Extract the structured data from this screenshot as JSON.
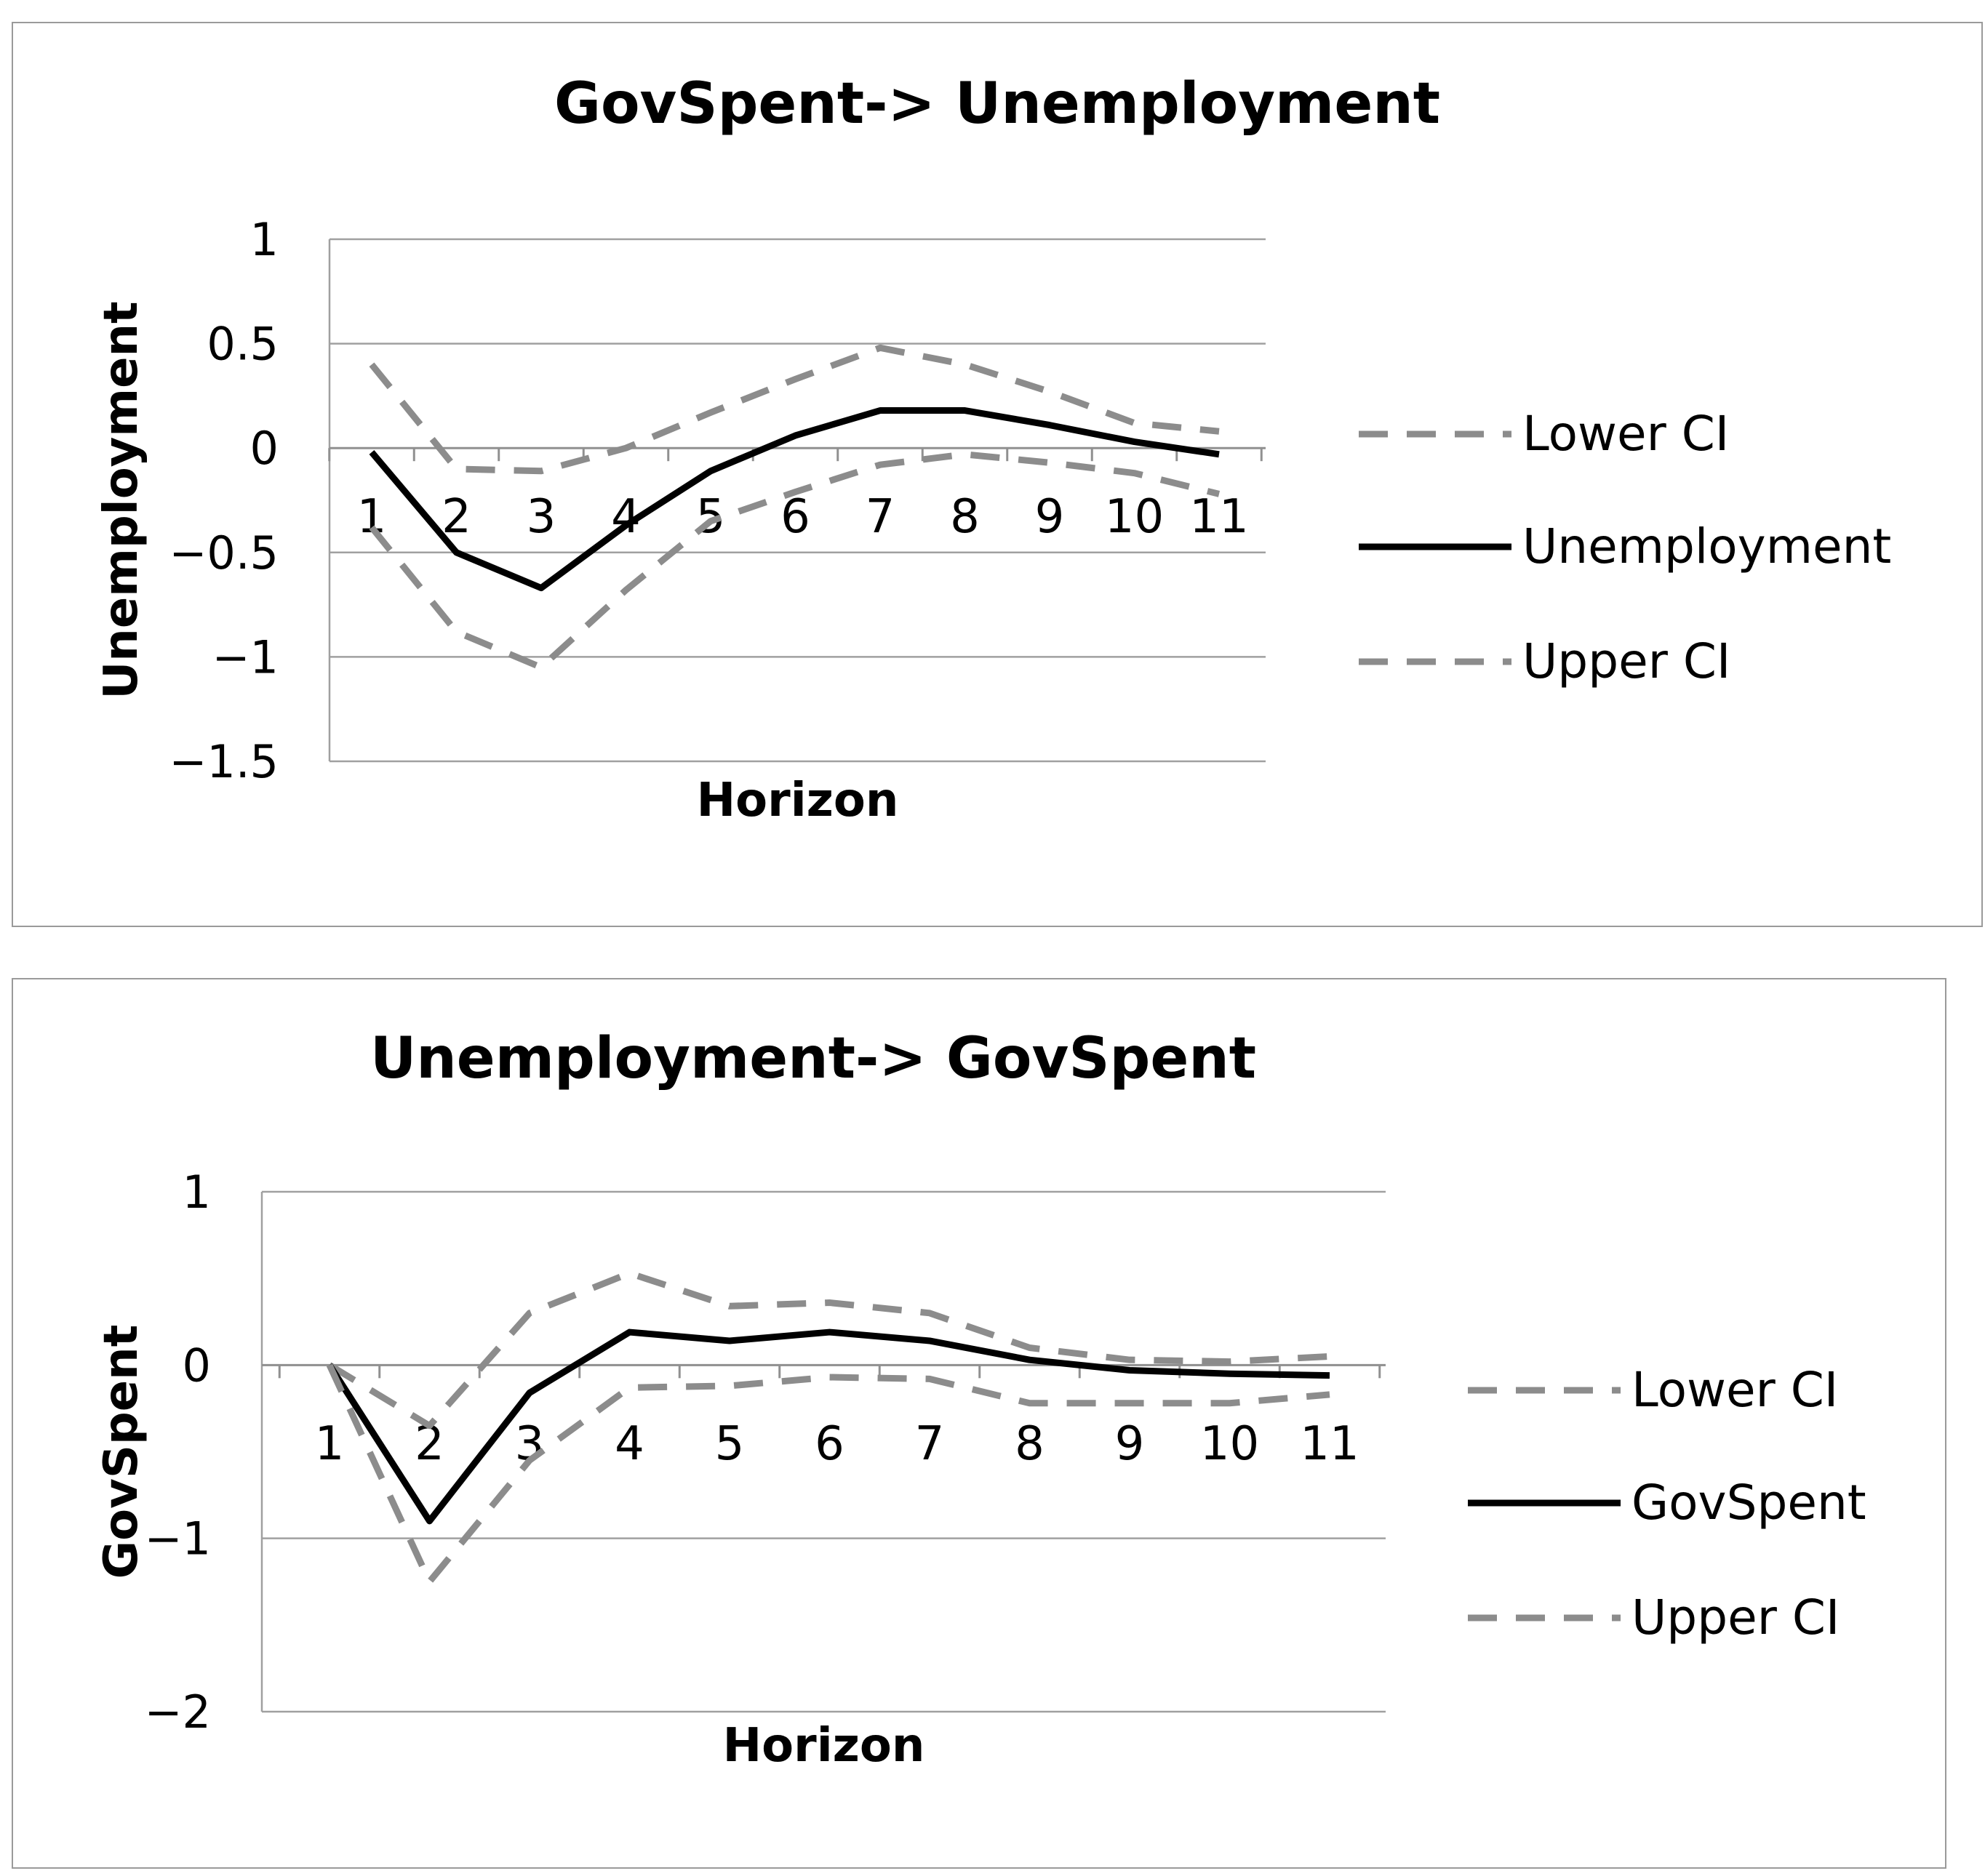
{
  "chart_data": [
    {
      "type": "line",
      "title": "GovSpent-> Unemployment",
      "xlabel": "Horizon",
      "ylabel": "Unemployment",
      "categories": [
        "1",
        "2",
        "3",
        "4",
        "5",
        "6",
        "7",
        "8",
        "9",
        "10",
        "11"
      ],
      "yticks": [
        "1",
        "0.5",
        "0",
        "−0.5",
        "−1",
        "−1.5"
      ],
      "ylim": [
        -1.5,
        1
      ],
      "grid": true,
      "legend_position": "right",
      "series": [
        {
          "name": "Lower CI",
          "style": "dashed",
          "color": "#8c8c8c",
          "values": [
            0.4,
            -0.1,
            -0.11,
            0.0,
            0.17,
            0.33,
            0.48,
            0.4,
            0.27,
            0.12,
            0.08
          ]
        },
        {
          "name": "Unemployment",
          "style": "solid",
          "color": "#000000",
          "values": [
            -0.02,
            -0.5,
            -0.67,
            -0.37,
            -0.11,
            0.06,
            0.18,
            0.18,
            0.11,
            0.03,
            -0.03
          ]
        },
        {
          "name": "Upper CI",
          "style": "dashed",
          "color": "#8c8c8c",
          "values": [
            -0.38,
            -0.88,
            -1.05,
            -0.68,
            -0.35,
            -0.21,
            -0.08,
            -0.03,
            -0.07,
            -0.12,
            -0.22
          ]
        }
      ]
    },
    {
      "type": "line",
      "title": "Unemployment-> GovSpent",
      "xlabel": "Horizon",
      "ylabel": "GovSpent",
      "categories": [
        "1",
        "2",
        "3",
        "4",
        "5",
        "6",
        "7",
        "8",
        "9",
        "10",
        "11"
      ],
      "yticks": [
        "1",
        "0",
        "−1",
        "−2"
      ],
      "ylim": [
        -2,
        1
      ],
      "grid": true,
      "legend_position": "right",
      "series": [
        {
          "name": "Lower CI",
          "style": "dashed",
          "color": "#8c8c8c",
          "values": [
            0.0,
            -0.35,
            0.3,
            0.53,
            0.34,
            0.36,
            0.3,
            0.1,
            0.03,
            0.02,
            0.05
          ]
        },
        {
          "name": "GovSpent",
          "style": "solid",
          "color": "#000000",
          "values": [
            0.0,
            -0.9,
            -0.16,
            0.19,
            0.14,
            0.19,
            0.14,
            0.03,
            -0.03,
            -0.05,
            -0.06
          ]
        },
        {
          "name": "Upper CI",
          "style": "dashed",
          "color": "#8c8c8c",
          "values": [
            0.0,
            -1.25,
            -0.55,
            -0.13,
            -0.12,
            -0.07,
            -0.08,
            -0.22,
            -0.22,
            -0.22,
            -0.17
          ]
        }
      ]
    }
  ]
}
